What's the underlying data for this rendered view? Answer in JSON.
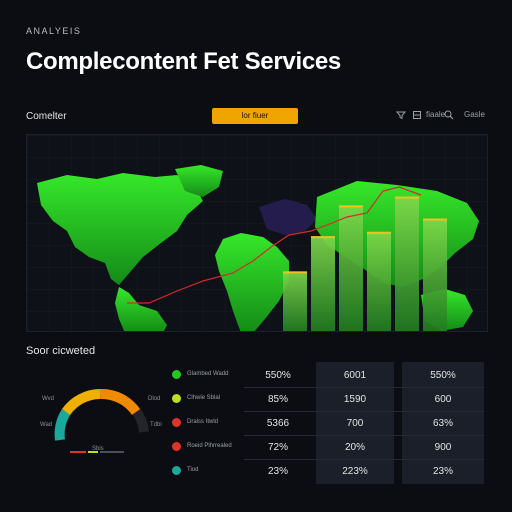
{
  "header": {
    "eyebrow": "ANALYEIS",
    "title": "Complecontent Fet Services"
  },
  "toolbar": {
    "section_label": "Comelter",
    "filter_label": "lor fiuer",
    "tools": [
      {
        "icon": "filter-icon",
        "label": ""
      },
      {
        "icon": "layers-icon",
        "label": ""
      },
      {
        "icon": "list-icon",
        "label": "fiaale"
      },
      {
        "icon": "search-icon",
        "label": ""
      },
      {
        "icon": "none",
        "label": "Gasle"
      }
    ]
  },
  "map": {
    "land_color": "#22c81e",
    "bar_color": "#5ec23a",
    "route_color": "#d42a2a",
    "bar_values": [
      28,
      44,
      58,
      46,
      62,
      52
    ]
  },
  "stats": {
    "title": "Soor cicweted",
    "gauge": {
      "labels": [
        "Wvd",
        "Wad",
        "Dlod",
        "Tdbi",
        "Dld"
      ],
      "footer": "Sbis"
    },
    "legend": [
      {
        "color": "#22c81e",
        "text": "Glambed Wadd"
      },
      {
        "color": "#b9e022",
        "text": "Clhwie Sblal"
      },
      {
        "color": "#e0342a",
        "text": "Dralss Itwld"
      },
      {
        "color": "#e0342a",
        "text": "Roeid Plhrrealed"
      },
      {
        "color": "#1aa89a",
        "text": "Tiod"
      }
    ],
    "table": [
      [
        "550%",
        "6001",
        "550%"
      ],
      [
        "85%",
        "1590",
        "600"
      ],
      [
        "5366",
        "700",
        "63%"
      ],
      [
        "72%",
        "20%",
        "900"
      ],
      [
        "23%",
        "223%",
        "23%"
      ]
    ]
  }
}
